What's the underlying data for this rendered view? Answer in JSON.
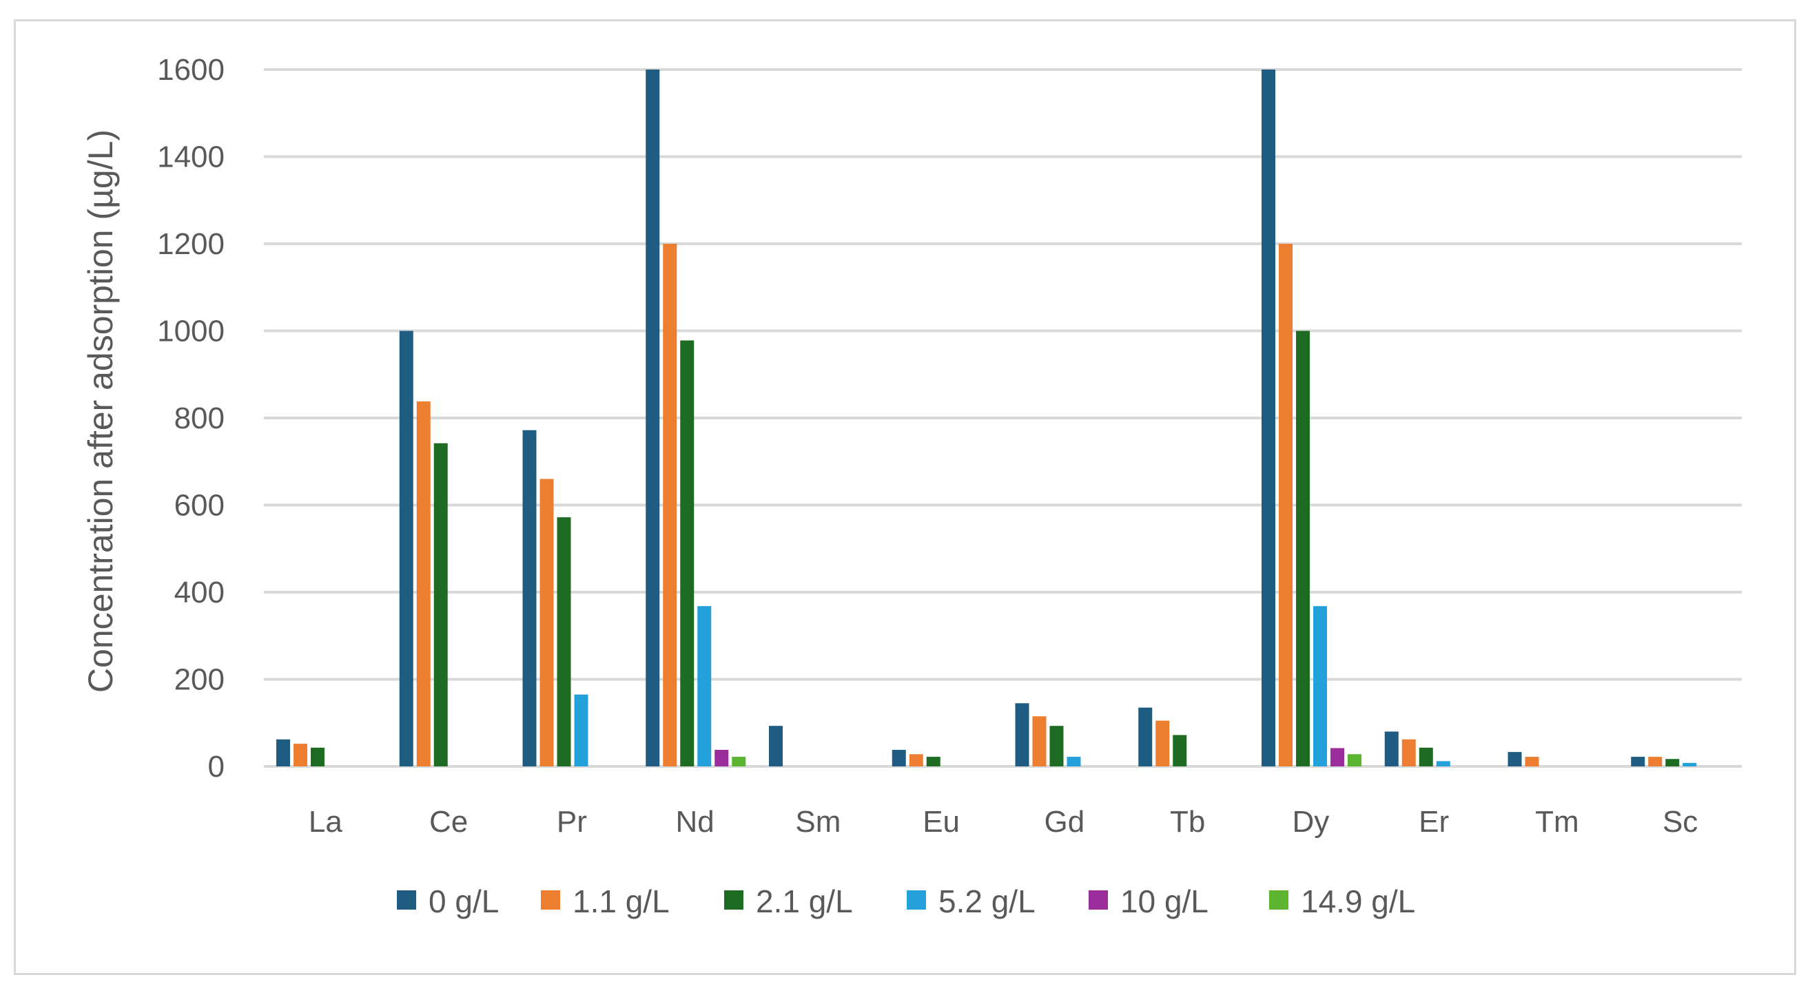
{
  "chart_data": {
    "type": "bar",
    "title": "",
    "xlabel": "",
    "ylabel": "Concentration after adsorption (µg/L)",
    "ylim": [
      0,
      1600
    ],
    "yticks": [
      0,
      200,
      400,
      600,
      800,
      1000,
      1200,
      1400,
      1600
    ],
    "grid": true,
    "legend_position": "bottom",
    "categories": [
      "La",
      "Ce",
      "Pr",
      "Nd",
      "Sm",
      "Eu",
      "Gd",
      "Tb",
      "Dy",
      "Er",
      "Tm",
      "Sc"
    ],
    "series": [
      {
        "name": "0 g/L",
        "color": "#1f5c82",
        "values": [
          62,
          1000,
          772,
          1600,
          93,
          38,
          145,
          135,
          1600,
          80,
          33,
          22
        ]
      },
      {
        "name": "1.1 g/L",
        "color": "#ed7d31",
        "values": [
          52,
          838,
          660,
          1200,
          0,
          28,
          115,
          105,
          1200,
          62,
          22,
          22
        ]
      },
      {
        "name": "2.1 g/L",
        "color": "#1e6b24",
        "values": [
          43,
          742,
          572,
          978,
          0,
          22,
          93,
          72,
          1000,
          43,
          0,
          17
        ]
      },
      {
        "name": "5.2 g/L",
        "color": "#24a0db",
        "values": [
          0,
          0,
          165,
          368,
          0,
          0,
          22,
          0,
          368,
          12,
          0,
          8
        ]
      },
      {
        "name": "10 g/L",
        "color": "#9b2d9b",
        "values": [
          0,
          0,
          0,
          38,
          0,
          0,
          0,
          0,
          42,
          0,
          0,
          0
        ]
      },
      {
        "name": "14.9 g/L",
        "color": "#5cb531",
        "values": [
          0,
          0,
          0,
          22,
          0,
          0,
          0,
          0,
          28,
          0,
          0,
          0
        ]
      }
    ]
  }
}
